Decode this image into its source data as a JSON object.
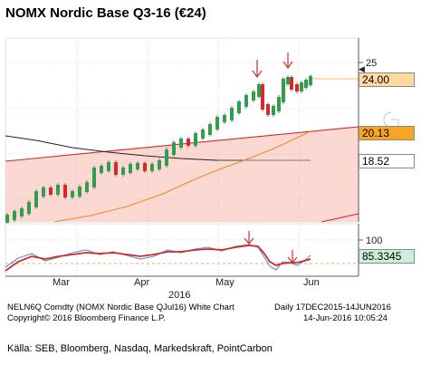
{
  "title": "NOMX Nordic Base Q3-16 (€24)",
  "chart_data": {
    "type": "candlestick",
    "main_panel": {
      "y_ticks": [
        25
      ],
      "price_labels": [
        {
          "value": "24.00",
          "color": "#ffd9a0",
          "border": "#c8a060"
        },
        {
          "value": "20.13",
          "color": "#f6a623",
          "border": "#c07a10"
        },
        {
          "value": "18.52",
          "color": "#ffffff",
          "border": "#888888"
        }
      ],
      "trend_lines": [
        {
          "name": "upper trendline",
          "color": "#d42a2a"
        },
        {
          "name": "lower trendline",
          "color": "#d42a2a"
        },
        {
          "name": "moving average (orange)",
          "color": "#f08a24"
        },
        {
          "name": "moving average (black)",
          "color": "#222222"
        }
      ],
      "channel_fill": "#fcd8d2",
      "annotations": [
        "arrow at May peak",
        "arrow at late-May peak"
      ]
    },
    "indicator_panel": {
      "y_ticks": [
        100
      ],
      "value_label": "85.3345",
      "label_color": "#cfeeda",
      "reference_line": "dashed orange",
      "annotations": [
        "arrow at May high",
        "arrow at June low"
      ]
    },
    "x_axis": {
      "tick_labels": [
        "Mar",
        "Apr",
        "May",
        "Jun"
      ],
      "year_label": "2016"
    }
  },
  "footer": {
    "line1_left": "NELN6Q Comdty (NOMX Nordic Base QJul16) White Chart",
    "line1_right": "Daily 17DEC2015-14JUN2016",
    "line2_left": "Copyright© 2016 Bloomberg Finance L.P.",
    "line2_right": "14-Jun-2016 10:05:24"
  },
  "source": "Källa: SEB, Bloomberg, Nasdaq, Markedskraft, PointCarbon"
}
